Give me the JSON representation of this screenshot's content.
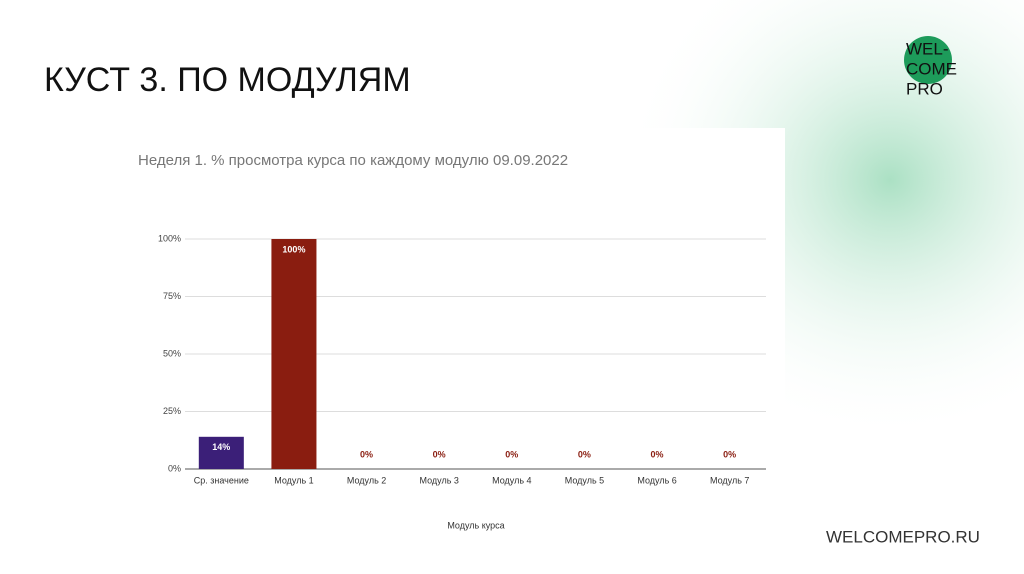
{
  "slide": {
    "title": "КУСТ 3. ПО МОДУЛЯМ",
    "footer": "WELCOMEPRO.RU",
    "logo": [
      "WEL-",
      "COME",
      "PRO"
    ]
  },
  "chart_data": {
    "type": "bar",
    "title": "Неделя 1. % просмотра курса по каждому модулю 09.09.2022",
    "x_label": "Модуль курса",
    "categories": [
      "Ср. значение",
      "Модуль 1",
      "Модуль 2",
      "Модуль 3",
      "Модуль 4",
      "Модуль 5",
      "Модуль 6",
      "Модуль 7"
    ],
    "values": [
      14,
      100,
      0,
      0,
      0,
      0,
      0,
      0
    ],
    "value_labels": [
      "14%",
      "100%",
      "0%",
      "0%",
      "0%",
      "0%",
      "0%",
      "0%"
    ],
    "colors": [
      "#3b1f78",
      "#8a1d10",
      "#8a1d10",
      "#8a1d10",
      "#8a1d10",
      "#8a1d10",
      "#8a1d10",
      "#8a1d10"
    ],
    "ylim": [
      0,
      100
    ],
    "yticks": [
      {
        "value": 0,
        "label": "0%"
      },
      {
        "value": 25,
        "label": "25%"
      },
      {
        "value": 50,
        "label": "50%"
      },
      {
        "value": 75,
        "label": "75%"
      },
      {
        "value": 100,
        "label": "100%"
      }
    ],
    "grid": true
  }
}
